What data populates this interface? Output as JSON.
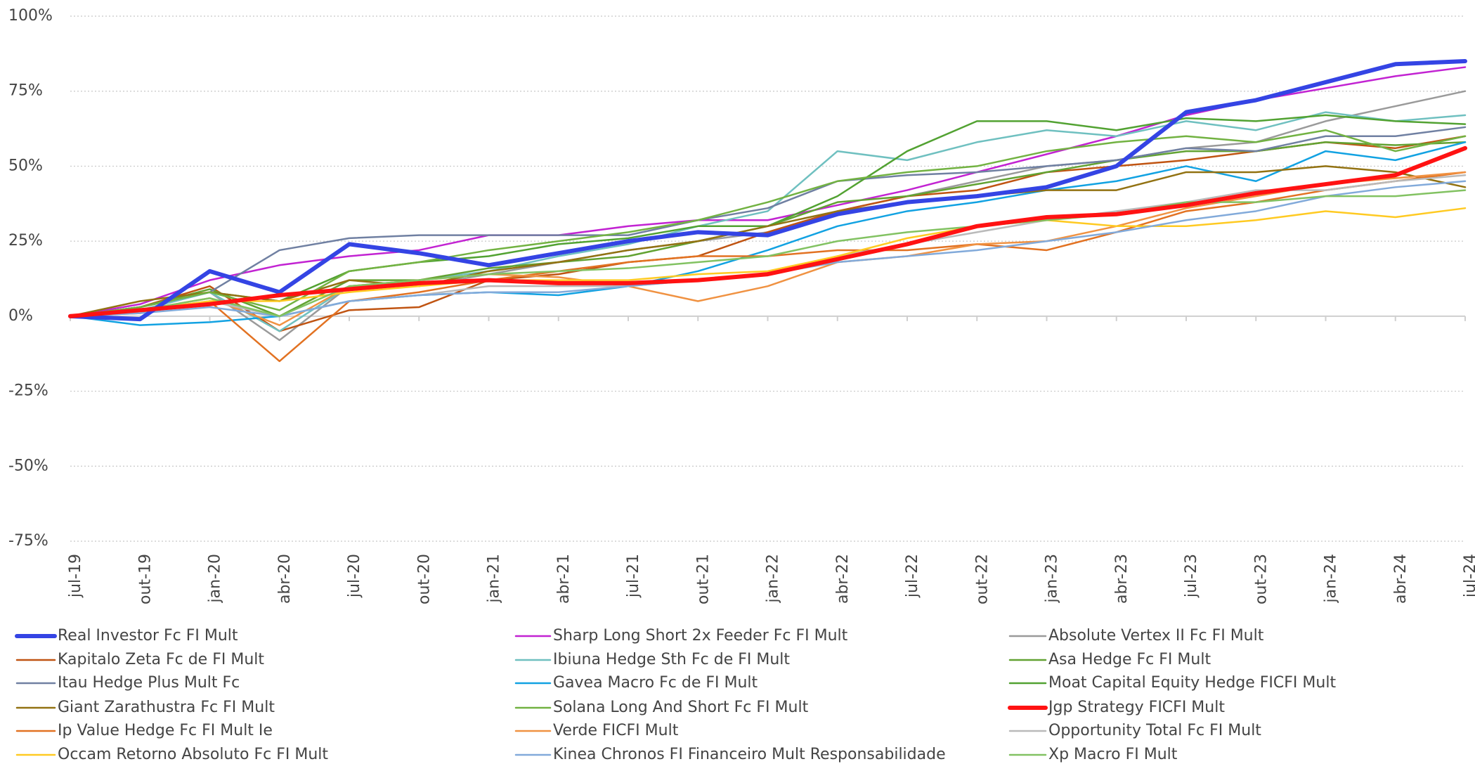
{
  "chart_data": {
    "type": "line",
    "categories": [
      "jul-19",
      "out-19",
      "jan-20",
      "abr-20",
      "jul-20",
      "out-20",
      "jan-21",
      "abr-21",
      "jul-21",
      "out-21",
      "jan-22",
      "abr-22",
      "jul-22",
      "out-22",
      "jan-23",
      "abr-23",
      "jul-23",
      "out-23",
      "jan-24",
      "abr-24",
      "jul-24"
    ],
    "ylim": [
      -75,
      100
    ],
    "yticks": [
      {
        "value": -75,
        "label": "-75%"
      },
      {
        "value": -50,
        "label": "-50%"
      },
      {
        "value": -25,
        "label": "-25%"
      },
      {
        "value": 0,
        "label": "0%"
      },
      {
        "value": 25,
        "label": "25%"
      },
      {
        "value": 50,
        "label": "50%"
      },
      {
        "value": 75,
        "label": "75%"
      },
      {
        "value": 100,
        "label": "100%"
      }
    ],
    "grid": true,
    "legend": "bottom",
    "series": [
      {
        "name": "Real Investor Fc FI Mult",
        "color": "#3444e4",
        "width": 6,
        "values": [
          0,
          -1,
          15,
          8,
          24,
          21,
          17,
          21,
          25,
          28,
          27,
          34,
          38,
          40,
          43,
          50,
          68,
          72,
          78,
          84,
          85
        ]
      },
      {
        "name": "Sharp Long Short 2x Feeder Fc FI Mult",
        "color": "#c223d2",
        "width": 2.5,
        "values": [
          0,
          4,
          12,
          17,
          20,
          22,
          27,
          27,
          30,
          32,
          32,
          37,
          42,
          48,
          54,
          60,
          67,
          72,
          76,
          80,
          83
        ]
      },
      {
        "name": "Absolute Vertex II Fc FI Mult",
        "color": "#9a9a9a",
        "width": 2.5,
        "values": [
          0,
          2,
          8,
          -8,
          10,
          10,
          14,
          18,
          22,
          25,
          28,
          35,
          40,
          45,
          50,
          52,
          56,
          58,
          65,
          70,
          75
        ]
      },
      {
        "name": "Kapitalo Zeta Fc de FI Mult",
        "color": "#c05412",
        "width": 2.5,
        "values": [
          0,
          3,
          10,
          -5,
          2,
          3,
          12,
          14,
          18,
          20,
          28,
          35,
          40,
          42,
          48,
          50,
          52,
          55,
          58,
          56,
          60
        ]
      },
      {
        "name": "Ibiuna Hedge Sth Fc de FI Mult",
        "color": "#6fc0c0",
        "width": 2.5,
        "values": [
          0,
          2,
          8,
          -5,
          10,
          12,
          15,
          20,
          24,
          30,
          35,
          55,
          52,
          58,
          62,
          60,
          65,
          62,
          68,
          65,
          67
        ]
      },
      {
        "name": "Asa Hedge Fc FI Mult",
        "color": "#62a232",
        "width": 2.5,
        "values": [
          0,
          3,
          9,
          0,
          12,
          12,
          16,
          18,
          20,
          25,
          30,
          38,
          40,
          44,
          48,
          52,
          55,
          55,
          58,
          57,
          58
        ]
      },
      {
        "name": "Itau Hedge Plus Mult Fc",
        "color": "#7080a2",
        "width": 2.5,
        "values": [
          0,
          3,
          8,
          22,
          26,
          27,
          27,
          27,
          27,
          32,
          36,
          45,
          47,
          48,
          50,
          52,
          56,
          55,
          60,
          60,
          63
        ]
      },
      {
        "name": "Gavea Macro Fc de FI Mult",
        "color": "#12a2e2",
        "width": 2.5,
        "values": [
          0,
          -3,
          -2,
          0,
          5,
          7,
          8,
          7,
          10,
          15,
          22,
          30,
          35,
          38,
          42,
          45,
          50,
          45,
          55,
          52,
          58
        ]
      },
      {
        "name": "Moat Capital Equity Hedge FICFI Mult",
        "color": "#52a232",
        "width": 2.5,
        "values": [
          0,
          3,
          8,
          5,
          15,
          18,
          20,
          24,
          26,
          30,
          30,
          40,
          55,
          65,
          65,
          62,
          66,
          65,
          67,
          65,
          64
        ]
      },
      {
        "name": "Giant Zarathustra Fc FI Mult",
        "color": "#927212",
        "width": 2.5,
        "values": [
          0,
          5,
          8,
          5,
          12,
          10,
          15,
          18,
          22,
          25,
          30,
          35,
          38,
          40,
          42,
          42,
          48,
          48,
          50,
          48,
          43
        ]
      },
      {
        "name": "Solana Long And Short Fc FI Mult",
        "color": "#72b242",
        "width": 2.5,
        "values": [
          0,
          3,
          8,
          2,
          15,
          18,
          22,
          25,
          28,
          32,
          38,
          45,
          48,
          50,
          55,
          58,
          60,
          58,
          62,
          55,
          60
        ]
      },
      {
        "name": "Jgp Strategy FICFI Mult",
        "color": "#ff1212",
        "width": 6,
        "values": [
          0,
          2,
          4,
          7,
          9,
          11,
          12,
          11,
          11,
          12,
          14,
          19,
          24,
          30,
          33,
          34,
          37,
          41,
          44,
          47,
          56
        ]
      },
      {
        "name": "Ip Value Hedge Fc FI Mult Ie",
        "color": "#e27222",
        "width": 2.5,
        "values": [
          0,
          1,
          5,
          -15,
          5,
          8,
          12,
          15,
          18,
          20,
          20,
          22,
          22,
          24,
          22,
          28,
          35,
          38,
          42,
          45,
          48
        ]
      },
      {
        "name": "Verde FICFI Mult",
        "color": "#f09242",
        "width": 2.5,
        "values": [
          0,
          2,
          6,
          -3,
          10,
          12,
          14,
          13,
          10,
          5,
          10,
          18,
          20,
          24,
          25,
          30,
          36,
          40,
          44,
          46,
          48
        ]
      },
      {
        "name": "Opportunity Total Fc FI Mult",
        "color": "#bababa",
        "width": 2.5,
        "values": [
          0,
          2,
          5,
          0,
          5,
          7,
          10,
          10,
          10,
          12,
          14,
          20,
          24,
          28,
          32,
          35,
          38,
          42,
          42,
          45,
          47
        ]
      },
      {
        "name": "Occam Retorno Absoluto Fc FI Mult",
        "color": "#ffca22",
        "width": 2.5,
        "values": [
          0,
          2,
          5,
          5,
          8,
          10,
          12,
          12,
          12,
          14,
          15,
          20,
          26,
          30,
          32,
          30,
          30,
          32,
          35,
          33,
          36
        ]
      },
      {
        "name": "Kinea Chronos FI Financeiro Mult Responsabilidade",
        "color": "#82aada",
        "width": 2.5,
        "values": [
          0,
          1,
          3,
          0,
          5,
          7,
          8,
          8,
          10,
          12,
          14,
          18,
          20,
          22,
          25,
          28,
          32,
          35,
          40,
          43,
          45
        ]
      },
      {
        "name": "Xp Macro FI Mult",
        "color": "#82c262",
        "width": 2.5,
        "values": [
          0,
          2,
          6,
          0,
          10,
          12,
          14,
          15,
          16,
          18,
          20,
          25,
          28,
          30,
          32,
          34,
          38,
          38,
          40,
          40,
          42
        ]
      }
    ]
  }
}
